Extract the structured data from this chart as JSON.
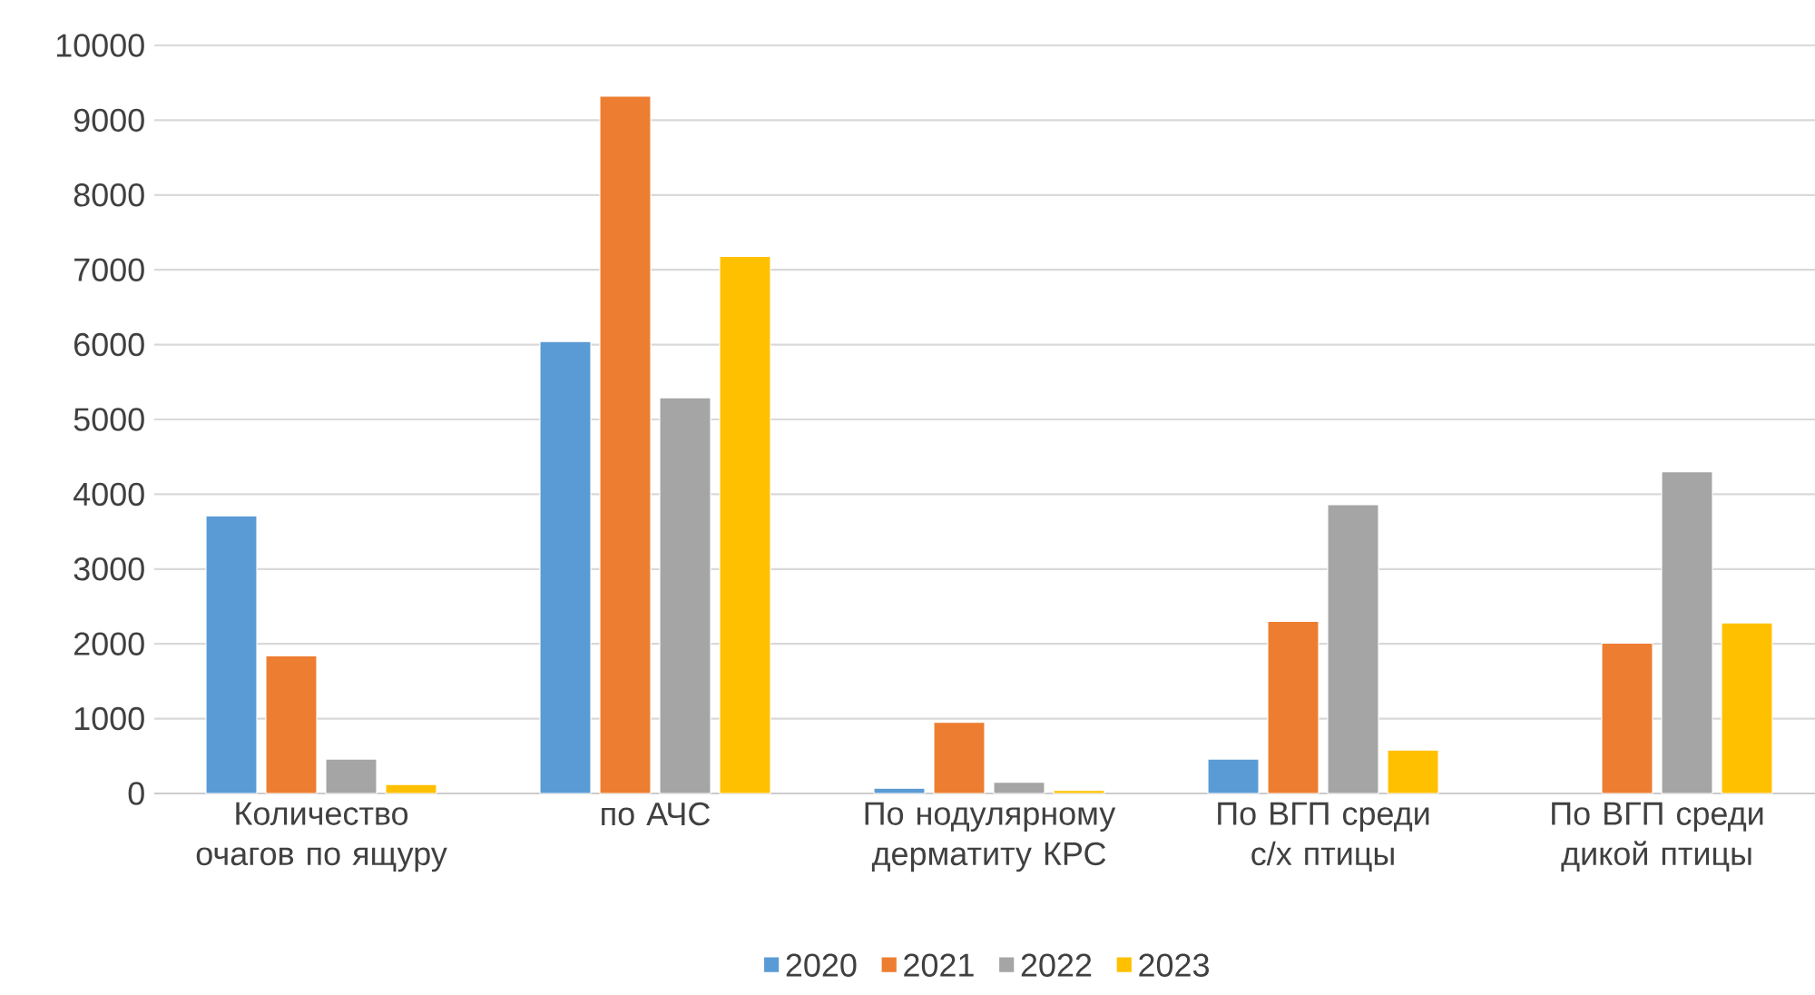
{
  "chart_data": {
    "type": "bar",
    "categories": [
      "Количество очагов по ящуру",
      "по АЧС",
      "По нодулярному дерматиту КРС",
      "По ВГП среди с/х птицы",
      "По ВГП среди дикой птицы"
    ],
    "series": [
      {
        "name": "2020",
        "color": "#5b9bd5",
        "values": [
          3710,
          6040,
          70,
          460,
          null
        ]
      },
      {
        "name": "2021",
        "color": "#ed7d31",
        "values": [
          1840,
          9320,
          950,
          2300,
          2010
        ]
      },
      {
        "name": "2022",
        "color": "#a5a5a5",
        "values": [
          460,
          5290,
          150,
          3860,
          4300
        ]
      },
      {
        "name": "2023",
        "color": "#ffc000",
        "values": [
          120,
          7180,
          40,
          580,
          2280
        ]
      }
    ],
    "ylim": [
      0,
      10000
    ],
    "yticks": [
      0,
      1000,
      2000,
      3000,
      4000,
      5000,
      6000,
      7000,
      8000,
      9000,
      10000
    ],
    "grid": "y",
    "legend": "bottom"
  }
}
